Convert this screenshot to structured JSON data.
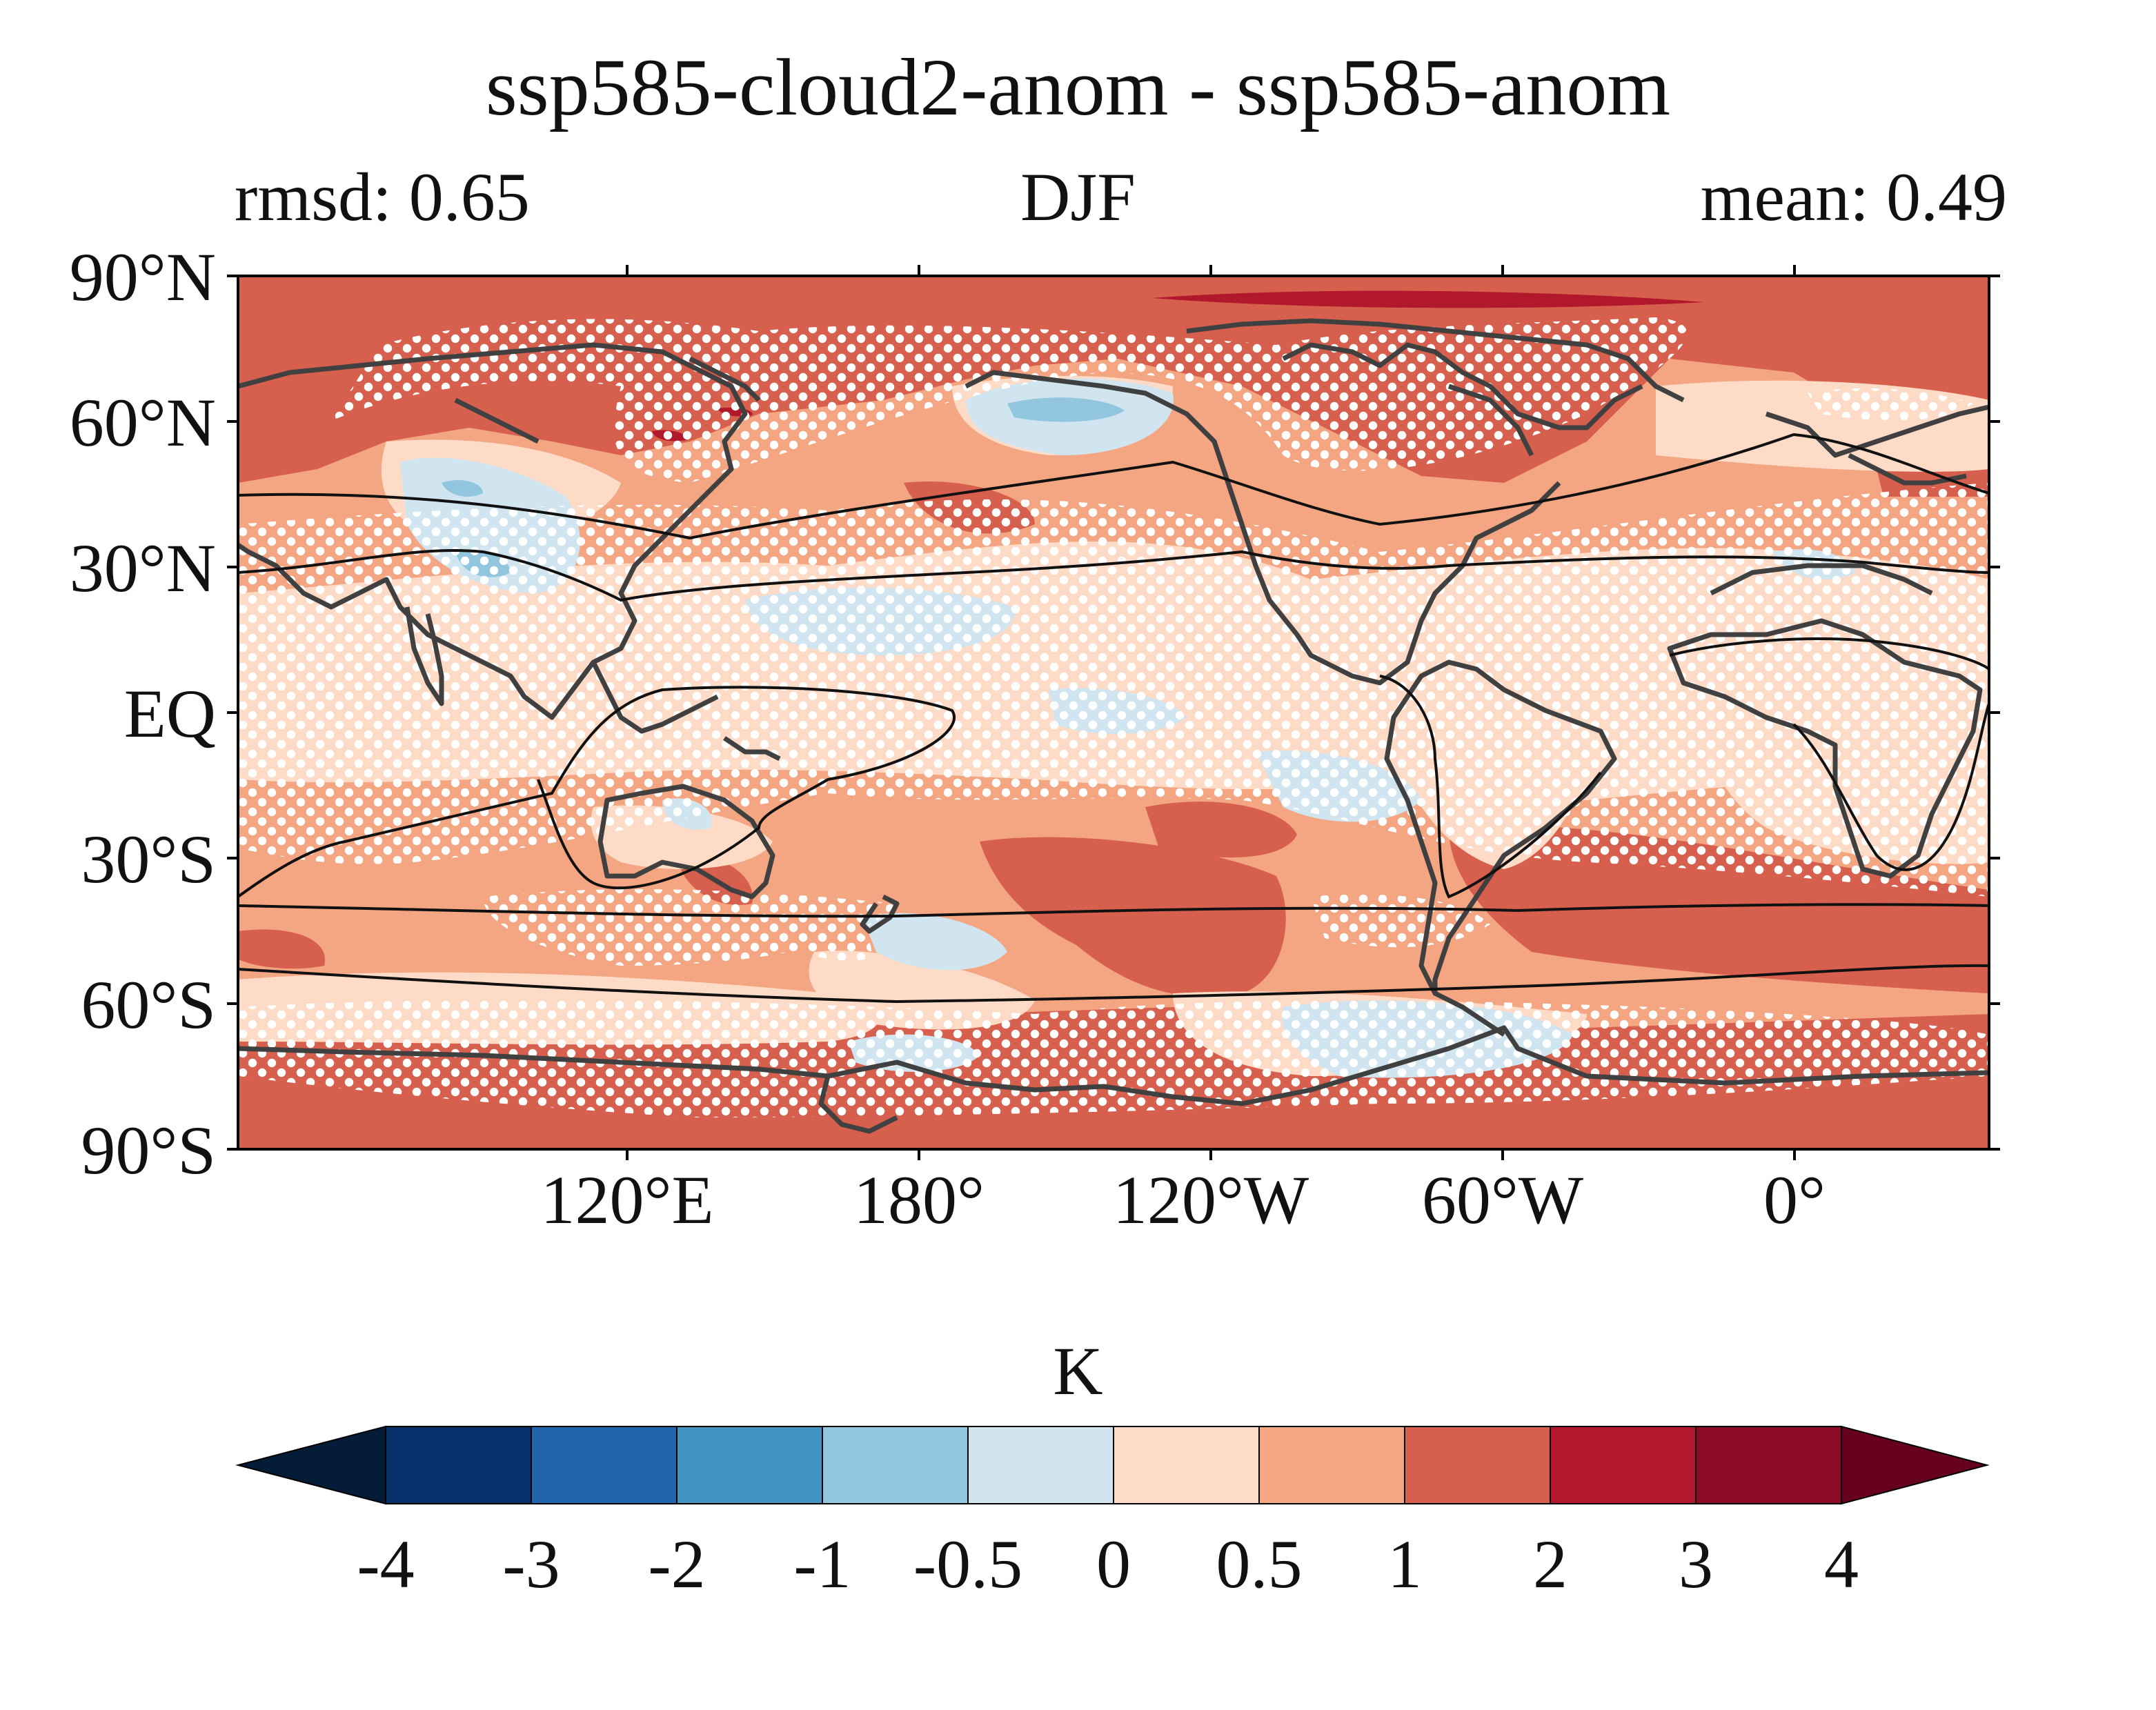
{
  "title": "ssp585-cloud2-anom - ssp585-anom",
  "subtitle_left": "rmsd: 0.65",
  "subtitle_center": "DJF",
  "subtitle_right": "mean: 0.49",
  "colors": {
    "frame": "#000000",
    "coastline": "#404040",
    "stipple": "#ffffff",
    "contour_line": "#111111"
  },
  "map": {
    "lat_ticks": [
      {
        "value": 90,
        "label": "90°N"
      },
      {
        "value": 60,
        "label": "60°N"
      },
      {
        "value": 30,
        "label": "30°N"
      },
      {
        "value": 0,
        "label": "EQ"
      },
      {
        "value": -30,
        "label": "30°S"
      },
      {
        "value": -60,
        "label": "60°S"
      },
      {
        "value": -90,
        "label": "90°S"
      }
    ],
    "lon_ticks": [
      {
        "value": 120,
        "label": "120°E"
      },
      {
        "value": 180,
        "label": "180°"
      },
      {
        "value": 240,
        "label": "120°W"
      },
      {
        "value": 300,
        "label": "60°W"
      },
      {
        "value": 360,
        "label": "0°"
      }
    ],
    "lon_range": [
      40,
      400
    ],
    "lat_range": [
      -90,
      90
    ],
    "stippling": "significance dots (white)",
    "projection": "PlateCarree",
    "central_longitude": "centred near 220°"
  },
  "colorbar": {
    "units": "K",
    "extend": "both",
    "orientation": "horizontal",
    "boundaries": [
      -4,
      -3,
      -2,
      -1,
      -0.5,
      0,
      0.5,
      1,
      2,
      3,
      4
    ],
    "tick_labels": [
      "-4",
      "-3",
      "-2",
      "-1",
      "-0.5",
      "0",
      "0.5",
      "1",
      "2",
      "3",
      "4"
    ],
    "colors": [
      "#08306b",
      "#2166ac",
      "#4393c3",
      "#92c5de",
      "#d1e5f0",
      "#fddbc7",
      "#f4a582",
      "#d6604d",
      "#b2182b",
      "#8b0a25"
    ],
    "under_color": "#041c38",
    "over_color": "#67001f"
  }
}
